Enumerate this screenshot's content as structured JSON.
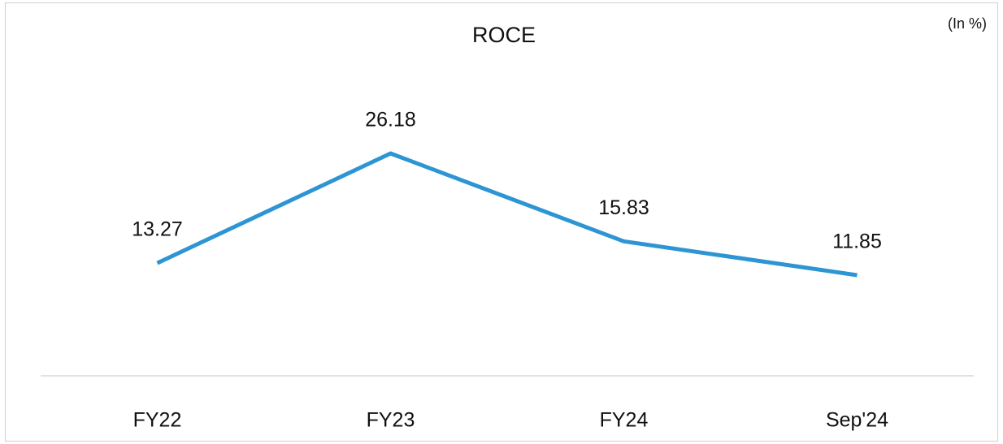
{
  "chart_data": {
    "type": "line",
    "title": "ROCE",
    "annotation": "(In %)",
    "categories": [
      "FY22",
      "FY23",
      "FY24",
      "Sep'24"
    ],
    "values": [
      13.27,
      26.18,
      15.83,
      11.85
    ],
    "color": "#2d95d3",
    "ylim": [
      0,
      30
    ]
  }
}
